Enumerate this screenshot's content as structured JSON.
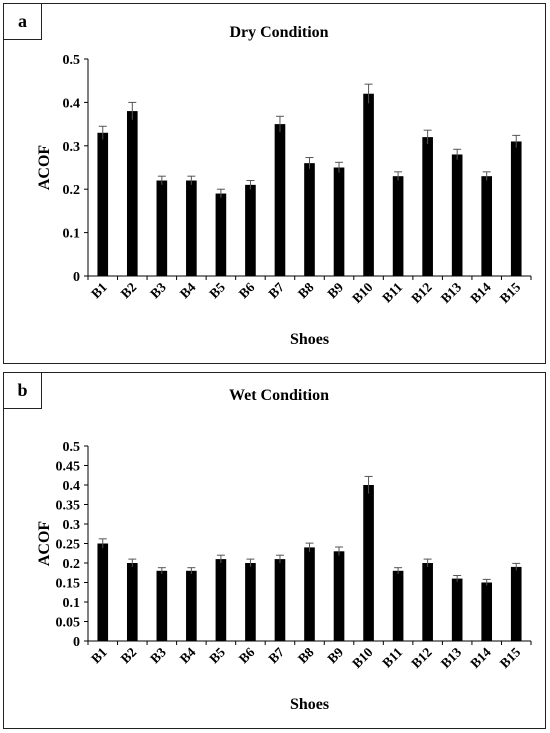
{
  "chart_data": [
    {
      "type": "bar",
      "panel_label": "a",
      "title": "Dry Condition",
      "xlabel": "Shoes",
      "ylabel": "ACOF",
      "categories": [
        "B1",
        "B2",
        "B3",
        "B4",
        "B5",
        "B6",
        "B7",
        "B8",
        "B9",
        "B10",
        "B11",
        "B12",
        "B13",
        "B14",
        "B15"
      ],
      "values": [
        0.33,
        0.38,
        0.22,
        0.22,
        0.19,
        0.21,
        0.35,
        0.26,
        0.25,
        0.42,
        0.23,
        0.32,
        0.28,
        0.23,
        0.31
      ],
      "errors": [
        0.015,
        0.02,
        0.01,
        0.01,
        0.01,
        0.01,
        0.018,
        0.013,
        0.012,
        0.022,
        0.01,
        0.016,
        0.012,
        0.01,
        0.014
      ],
      "ylim": [
        0,
        0.5
      ],
      "yticks": [
        "0",
        "0.1",
        "0.2",
        "0.3",
        "0.4",
        "0.5"
      ],
      "bar_color": "#000000",
      "grid": false
    },
    {
      "type": "bar",
      "panel_label": "b",
      "title": "Wet Condition",
      "xlabel": "Shoes",
      "ylabel": "ACOF",
      "categories": [
        "B1",
        "B2",
        "B3",
        "B4",
        "B5",
        "B6",
        "B7",
        "B8",
        "B9",
        "B10",
        "B11",
        "B12",
        "B13",
        "B14",
        "B15"
      ],
      "values": [
        0.25,
        0.2,
        0.18,
        0.18,
        0.21,
        0.2,
        0.21,
        0.24,
        0.23,
        0.4,
        0.18,
        0.2,
        0.16,
        0.15,
        0.19
      ],
      "errors": [
        0.012,
        0.01,
        0.008,
        0.008,
        0.01,
        0.01,
        0.01,
        0.011,
        0.011,
        0.022,
        0.008,
        0.01,
        0.008,
        0.008,
        0.009
      ],
      "ylim": [
        0,
        0.5
      ],
      "yticks": [
        "0",
        "0.05",
        "0.1",
        "0.15",
        "0.2",
        "0.25",
        "0.3",
        "0.35",
        "0.4",
        "0.45",
        "0.5"
      ],
      "bar_color": "#000000",
      "grid": false
    }
  ]
}
